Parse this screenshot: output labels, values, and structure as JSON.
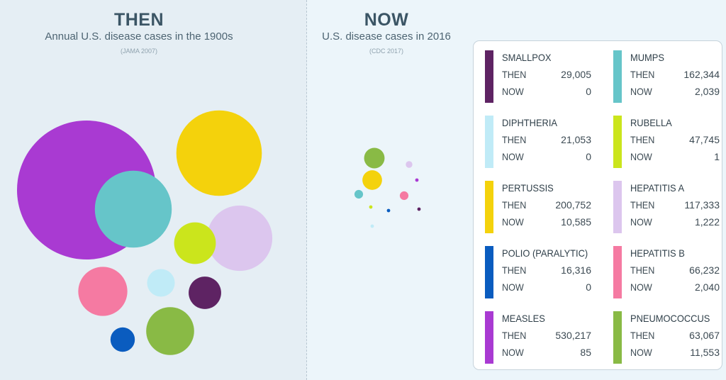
{
  "then_header": {
    "title": "THEN",
    "subtitle": "Annual U.S. disease cases in the 1900s",
    "source": "(JAMA 2007)"
  },
  "now_header": {
    "title": "NOW",
    "subtitle": "U.S. disease cases in 2016",
    "source": "(CDC 2017)"
  },
  "legend": {
    "then_label": "THEN",
    "now_label": "NOW",
    "items": [
      {
        "name": "SMALLPOX",
        "then": "29,005",
        "now": "0",
        "color": "#5e2363"
      },
      {
        "name": "MUMPS",
        "then": "162,344",
        "now": "2,039",
        "color": "#66c5c9"
      },
      {
        "name": "DIPHTHERIA",
        "then": "21,053",
        "now": "0",
        "color": "#c0ebf7"
      },
      {
        "name": "RUBELLA",
        "then": "47,745",
        "now": "1",
        "color": "#cbe51c"
      },
      {
        "name": "PERTUSSIS",
        "then": "200,752",
        "now": "10,585",
        "color": "#f4d20c"
      },
      {
        "name": "HEPATITIS A",
        "then": "117,333",
        "now": "1,222",
        "color": "#dcc6ee"
      },
      {
        "name": "POLIO (PARALYTIC)",
        "then": "16,316",
        "now": "0",
        "color": "#0a5cbf"
      },
      {
        "name": "HEPATITIS B",
        "then": "66,232",
        "now": "2,040",
        "color": "#f57aa2"
      },
      {
        "name": "MEASLES",
        "then": "530,217",
        "now": "85",
        "color": "#a93ad2"
      },
      {
        "name": "PNEUMOCOCCUS",
        "then": "63,067",
        "now": "11,553",
        "color": "#89ba45"
      }
    ]
  },
  "chart_data": {
    "type": "bubble",
    "series": [
      {
        "name": "THEN",
        "points": [
          {
            "category": "MEASLES",
            "value": 530217
          },
          {
            "category": "PERTUSSIS",
            "value": 200752
          },
          {
            "category": "MUMPS",
            "value": 162344
          },
          {
            "category": "HEPATITIS A",
            "value": 117333
          },
          {
            "category": "RUBELLA",
            "value": 47745
          },
          {
            "category": "PNEUMOCOCCUS",
            "value": 63067
          },
          {
            "category": "HEPATITIS B",
            "value": 66232
          },
          {
            "category": "POLIO (PARALYTIC)",
            "value": 16316
          },
          {
            "category": "DIPHTHERIA",
            "value": 21053
          },
          {
            "category": "SMALLPOX",
            "value": 29005
          }
        ]
      },
      {
        "name": "NOW",
        "points": [
          {
            "category": "PNEUMOCOCCUS",
            "value": 11553
          },
          {
            "category": "PERTUSSIS",
            "value": 10585
          },
          {
            "category": "HEPATITIS A",
            "value": 1222
          },
          {
            "category": "HEPATITIS B",
            "value": 2040
          },
          {
            "category": "MUMPS",
            "value": 2039
          },
          {
            "category": "RUBELLA",
            "value": 1
          },
          {
            "category": "MEASLES",
            "value": 85
          },
          {
            "category": "SMALLPOX",
            "value": 0
          },
          {
            "category": "DIPHTHERIA",
            "value": 0
          },
          {
            "category": "POLIO (PARALYTIC)",
            "value": 0
          }
        ]
      }
    ]
  }
}
